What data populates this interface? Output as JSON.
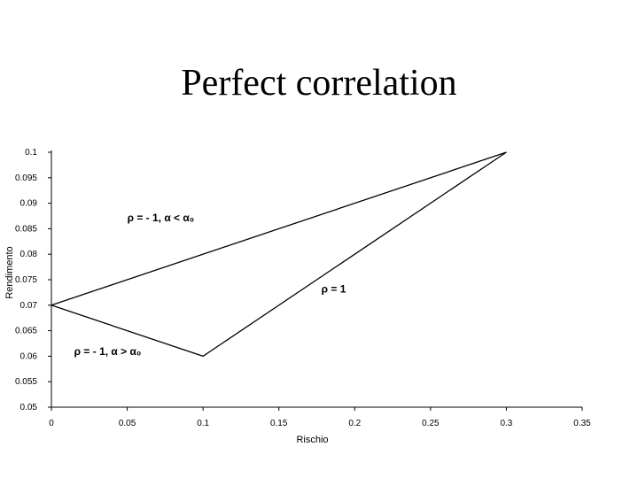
{
  "slide": {
    "title": "Perfect correlation"
  },
  "chart_data": {
    "type": "line",
    "title": "",
    "xlabel": "Rischio",
    "ylabel": "Rendimento",
    "xlim": [
      0,
      0.35
    ],
    "ylim": [
      0.05,
      0.1
    ],
    "grid": false,
    "x_ticks": [
      "0",
      "0.05",
      "0.1",
      "0.15",
      "0.2",
      "0.25",
      "0.3",
      "0.35"
    ],
    "y_ticks": [
      "0.05",
      "0.055",
      "0.06",
      "0.065",
      "0.07",
      "0.075",
      "0.08",
      "0.085",
      "0.09",
      "0.095",
      "0.1"
    ],
    "series": [
      {
        "points": [
          [
            0,
            0.07
          ],
          [
            0.3,
            0.1
          ]
        ]
      },
      {
        "points": [
          [
            0,
            0.07
          ],
          [
            0.1,
            0.06
          ],
          [
            0.3,
            0.1
          ]
        ]
      }
    ],
    "annotations": [
      {
        "text": "ρ = - 1, α < α₀",
        "x": 0.05,
        "y": 0.0865
      },
      {
        "text": "ρ = 1",
        "x": 0.178,
        "y": 0.0725
      },
      {
        "text": "ρ = - 1, α > α₀",
        "x": 0.015,
        "y": 0.0602
      }
    ]
  }
}
